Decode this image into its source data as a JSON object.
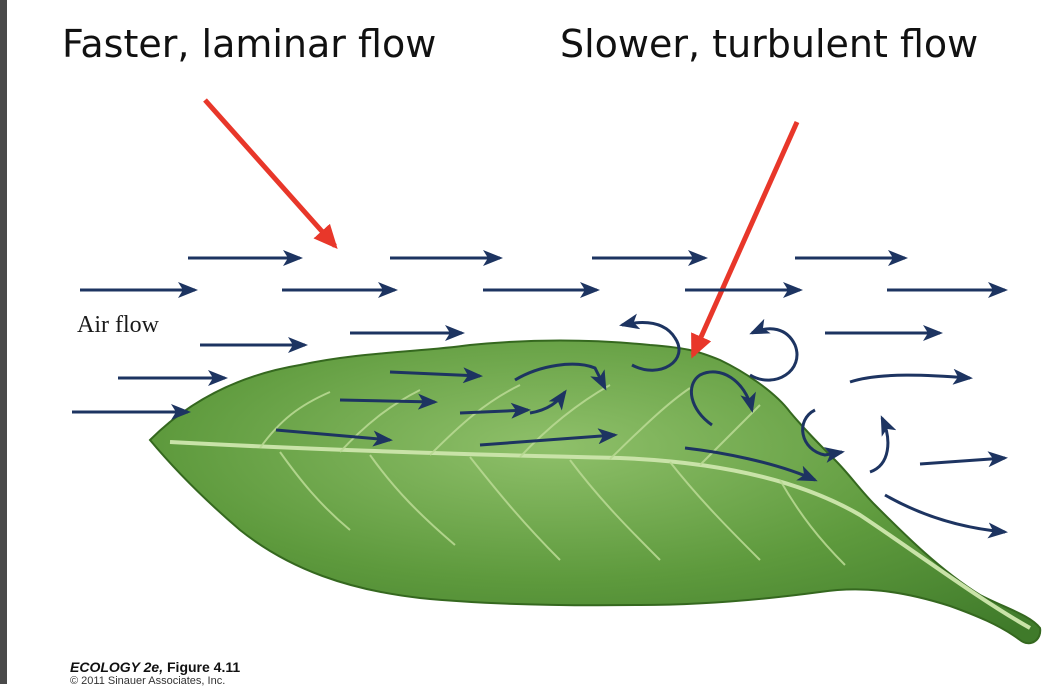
{
  "labels": {
    "laminar": "Faster, laminar flow",
    "turbulent": "Slower, turbulent flow",
    "air_flow": "Air flow"
  },
  "caption": {
    "book": "ECOLOGY 2e,",
    "figure": " Figure 4.11",
    "copyright": "© 2011 Sinauer Associates, Inc."
  },
  "colors": {
    "pointer_arrow": "#e8372a",
    "flow_arrow": "#1d3461",
    "leaf_dark": "#3f7a2a",
    "leaf_light": "#8fc06a",
    "vein": "#c9e3a8"
  }
}
